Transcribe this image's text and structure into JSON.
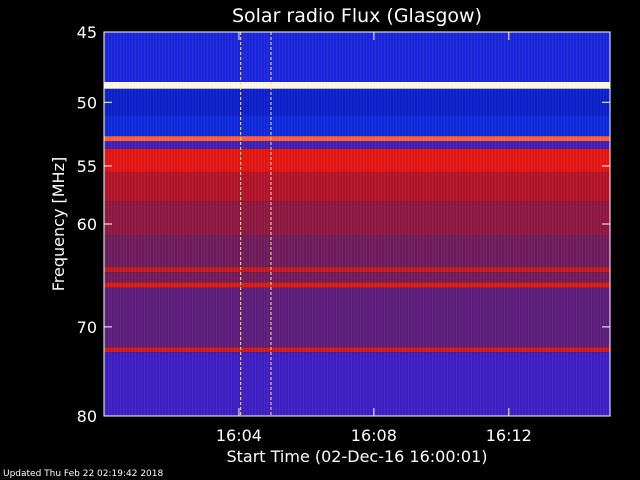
{
  "chart_data": {
    "type": "heatmap",
    "title": "Solar radio Flux (Glasgow)",
    "xlabel": "Start Time (02-Dec-16 16:00:01)",
    "ylabel": "Frequency [MHz]",
    "y_axis": {
      "range": [
        45,
        80
      ],
      "ticks": [
        45,
        50,
        55,
        60,
        70,
        80
      ],
      "tick_labels": [
        "45",
        "50",
        "55",
        "60",
        "70",
        "80"
      ],
      "scale": "log",
      "inverted": true
    },
    "x_axis": {
      "range_minutes": [
        0,
        15
      ],
      "ticks": [
        4,
        8,
        12
      ],
      "tick_labels": [
        "16:04",
        "16:08",
        "16:12"
      ]
    },
    "bands": [
      {
        "from_mhz": 45.0,
        "to_mhz": 48.5,
        "color": "#1a24d8"
      },
      {
        "from_mhz": 48.5,
        "to_mhz": 49.0,
        "color": "#fff6e0"
      },
      {
        "from_mhz": 49.0,
        "to_mhz": 51.0,
        "color": "#0c1ec8"
      },
      {
        "from_mhz": 51.0,
        "to_mhz": 52.6,
        "color": "#0e28d8"
      },
      {
        "from_mhz": 52.6,
        "to_mhz": 53.0,
        "color": "#ff5a3a"
      },
      {
        "from_mhz": 53.0,
        "to_mhz": 53.6,
        "color": "#3a20b8"
      },
      {
        "from_mhz": 53.6,
        "to_mhz": 55.5,
        "color": "#e01410"
      },
      {
        "from_mhz": 55.5,
        "to_mhz": 58.0,
        "color": "#b0122a"
      },
      {
        "from_mhz": 58.0,
        "to_mhz": 61.0,
        "color": "#8c1640"
      },
      {
        "from_mhz": 61.0,
        "to_mhz": 64.0,
        "color": "#6c1a5a"
      },
      {
        "from_mhz": 64.0,
        "to_mhz": 64.5,
        "color": "#c01a20"
      },
      {
        "from_mhz": 64.5,
        "to_mhz": 65.5,
        "color": "#701a58"
      },
      {
        "from_mhz": 65.5,
        "to_mhz": 66.0,
        "color": "#d41c14"
      },
      {
        "from_mhz": 66.0,
        "to_mhz": 72.2,
        "color": "#5a1c78"
      },
      {
        "from_mhz": 72.2,
        "to_mhz": 72.7,
        "color": "#cc1a18"
      },
      {
        "from_mhz": 72.7,
        "to_mhz": 80.0,
        "color": "#3c1ec0"
      }
    ],
    "bursts_minutes": [
      4.05,
      4.95
    ]
  },
  "footer": {
    "updated": "Updated Thu Feb 22 02:19:42 2018"
  }
}
